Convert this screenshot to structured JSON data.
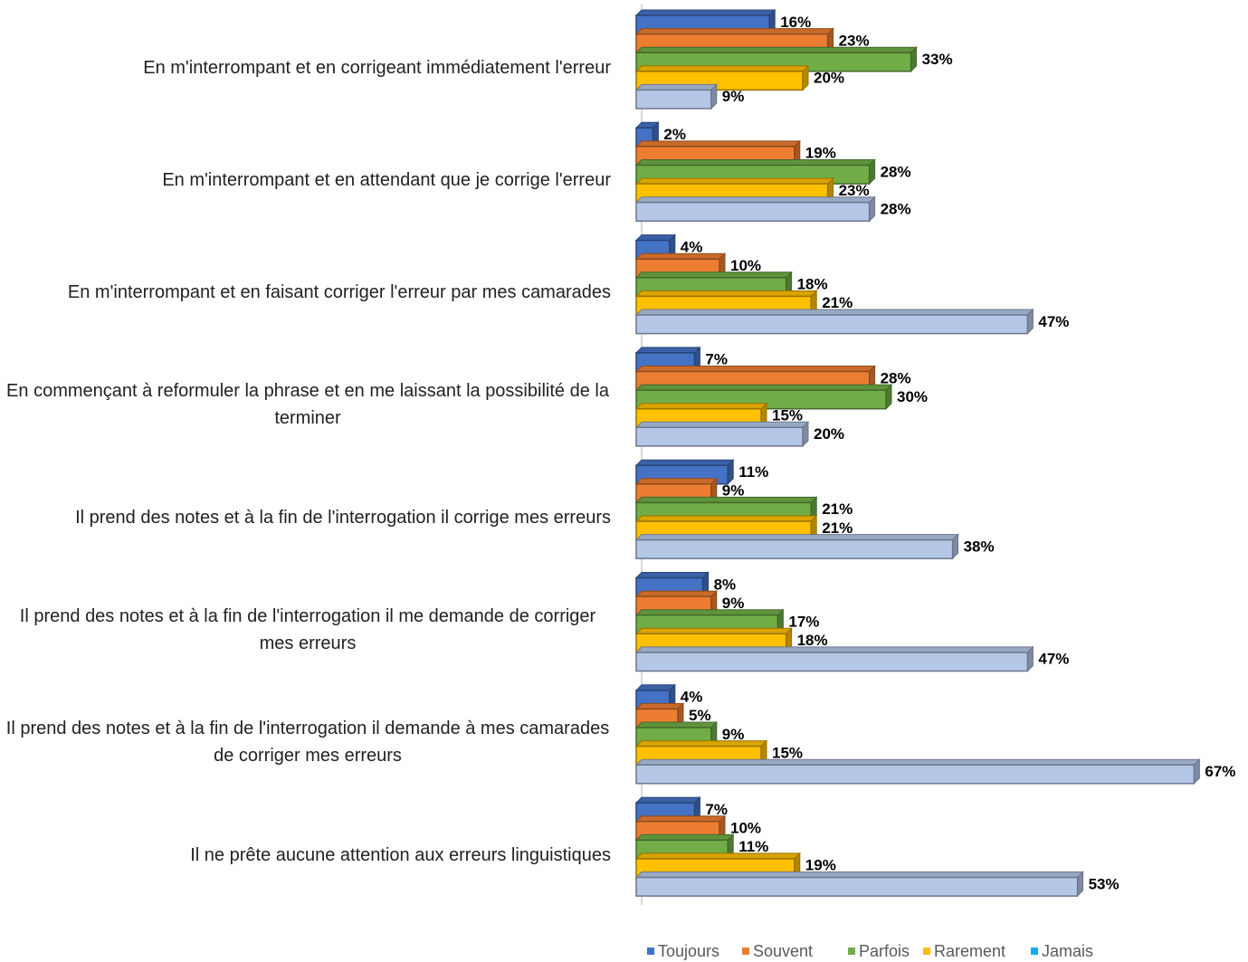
{
  "chart_data": {
    "type": "bar3d_horizontal",
    "categories": [
      "En m'interrompant et en corrigeant immédiatement l'erreur",
      "En m'interrompant et en attendant que je corrige l'erreur",
      "En m'interrompant et en faisant corriger l'erreur par mes camarades",
      "En commençant à reformuler la phrase et en me laissant la possibilité de la terminer",
      "Il prend des notes et à la fin de l'interrogation il corrige mes erreurs",
      "Il prend des notes et à la fin de l'interrogation il me demande de corriger mes erreurs",
      "Il prend des notes et à la fin de l'interrogation il demande à mes camarades de corriger mes erreurs",
      "Il ne prête aucune attention aux erreurs linguistiques"
    ],
    "series": [
      {
        "name": "Toujours",
        "color": "#4472c4",
        "values": [
          16,
          2,
          4,
          7,
          11,
          8,
          4,
          7
        ],
        "value_labels": [
          "16%",
          "2%",
          "4%",
          "7%",
          "11%",
          "8%",
          "4%",
          "7%"
        ]
      },
      {
        "name": "Souvent",
        "color": "#ed7d31",
        "values": [
          23,
          19,
          10,
          28,
          9,
          9,
          5,
          10
        ],
        "value_labels": [
          "23%",
          "19%",
          "10%",
          "28%",
          "9%",
          "9%",
          "5%",
          "10%"
        ]
      },
      {
        "name": "Parfois",
        "color": "#70ad47",
        "values": [
          33,
          28,
          18,
          30,
          21,
          17,
          9,
          11
        ],
        "value_labels": [
          "33%",
          "28%",
          "18%",
          "30%",
          "21%",
          "17%",
          "9%",
          "11%"
        ]
      },
      {
        "name": "Rarement",
        "color": "#ffc000",
        "values": [
          20,
          23,
          21,
          15,
          21,
          18,
          15,
          19
        ],
        "value_labels": [
          "20%",
          "23%",
          "21%",
          "15%",
          "21%",
          "18%",
          "15%",
          "19%"
        ]
      },
      {
        "name": "Jamais",
        "color": "#b4c7e7",
        "values": [
          9,
          28,
          47,
          20,
          38,
          47,
          67,
          53
        ],
        "value_labels": [
          "9%",
          "28%",
          "47%",
          "20%",
          "38%",
          "47%",
          "67%",
          "53%"
        ]
      }
    ],
    "legend": "bottom"
  }
}
